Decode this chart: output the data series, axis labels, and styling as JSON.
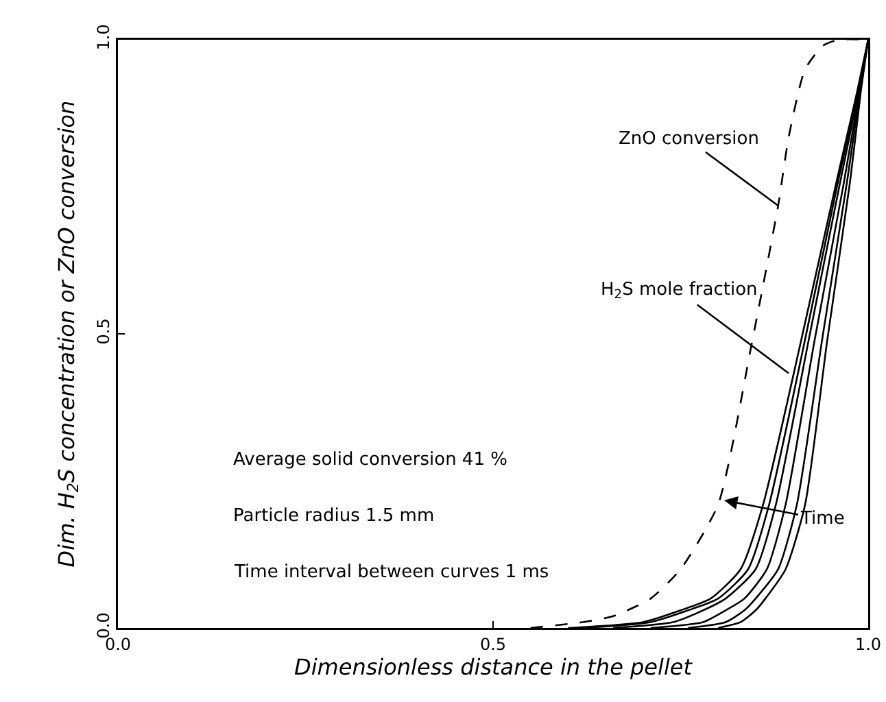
{
  "chart_data": {
    "type": "line",
    "xlabel": "Dimensionless distance in the pellet",
    "ylabel": "Dim. H$_{2}$S concentration or ZnO conversion",
    "xlim": [
      0,
      1
    ],
    "ylim": [
      0,
      1
    ],
    "xticks": [
      {
        "value": 0,
        "label": "0.0"
      },
      0.5,
      {
        "value": 1,
        "label": "1.0"
      }
    ],
    "yticks": [
      {
        "value": 0,
        "label": "0.0"
      },
      0.5,
      {
        "value": 1,
        "label": "1.0"
      }
    ],
    "grid": false,
    "marker": "none",
    "series": [
      {
        "color": "#000000",
        "line_style": "dashed",
        "x": [
          0.55,
          0.62,
          0.66,
          0.71,
          0.75,
          0.8,
          0.845,
          0.88,
          0.894,
          0.916,
          0.94,
          0.96,
          1.0
        ],
        "values": [
          0,
          0.01,
          0.02,
          0.05,
          0.1,
          0.21,
          0.485,
          0.718,
          0.834,
          0.95,
          0.99,
          1,
          1
        ]
      },
      {
        "color": "#000000",
        "line_style": "solid",
        "x": [
          0.6,
          0.7,
          0.75,
          0.79,
          0.83,
          0.86,
          0.91,
          0.958,
          0.985,
          1
        ],
        "values": [
          0,
          0.01,
          0.03,
          0.05,
          0.1,
          0.21,
          0.485,
          0.76,
          0.91,
          1
        ]
      },
      {
        "color": "#000000",
        "line_style": "solid",
        "x": [
          0.62,
          0.71,
          0.76,
          0.8,
          0.84,
          0.868,
          0.915,
          0.96,
          0.986,
          1
        ],
        "values": [
          0,
          0.01,
          0.03,
          0.05,
          0.1,
          0.21,
          0.485,
          0.76,
          0.91,
          1
        ]
      },
      {
        "color": "#000000",
        "line_style": "solid",
        "x": [
          0.66,
          0.74,
          0.78,
          0.81,
          0.85,
          0.877,
          0.92,
          0.963,
          0.987,
          1
        ],
        "values": [
          0,
          0.01,
          0.03,
          0.05,
          0.1,
          0.21,
          0.485,
          0.76,
          0.91,
          1
        ]
      },
      {
        "color": "#000000",
        "line_style": "solid",
        "x": [
          0.71,
          0.78,
          0.81,
          0.835,
          0.865,
          0.89,
          0.928,
          0.968,
          0.988,
          1
        ],
        "values": [
          0,
          0.01,
          0.03,
          0.05,
          0.1,
          0.21,
          0.485,
          0.76,
          0.91,
          1
        ]
      },
      {
        "color": "#000000",
        "line_style": "solid",
        "x": [
          0.76,
          0.81,
          0.835,
          0.85,
          0.88,
          0.905,
          0.938,
          0.972,
          0.989,
          1
        ],
        "values": [
          0,
          0.01,
          0.03,
          0.05,
          0.1,
          0.21,
          0.485,
          0.76,
          0.91,
          1
        ]
      },
      {
        "color": "#000000",
        "line_style": "solid",
        "x": [
          0.8,
          0.83,
          0.85,
          0.863,
          0.89,
          0.916,
          0.945,
          0.976,
          0.99,
          1
        ],
        "values": [
          0,
          0.01,
          0.03,
          0.05,
          0.1,
          0.21,
          0.485,
          0.76,
          0.91,
          1
        ]
      }
    ],
    "annotations": [
      {
        "text": "ZnO conversion",
        "x": 0.88,
        "y": 0.718
      },
      {
        "text": "H$_{2}$S mole fraction",
        "x": 0.894,
        "y": 0.433
      },
      {
        "text": "Time",
        "x": 0.808,
        "y": 0.217
      },
      "Average solid conversion 41 %",
      "Particle radius 1.5 mm",
      "Time interval between curves 1 ms"
    ]
  }
}
